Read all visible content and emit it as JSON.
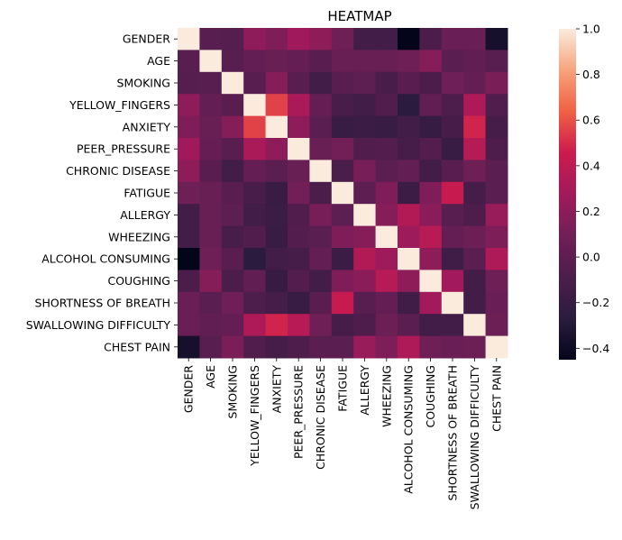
{
  "chart_data": {
    "type": "heatmap",
    "title": "HEATMAP",
    "xlabel": "",
    "ylabel": "",
    "categories": [
      "GENDER",
      "AGE",
      "SMOKING",
      "YELLOW_FINGERS",
      "ANXIETY",
      "PEER_PRESSURE",
      "CHRONIC DISEASE",
      "FATIGUE ",
      "ALLERGY ",
      "WHEEZING",
      "ALCOHOL CONSUMING",
      "COUGHING",
      "SHORTNESS OF BREATH",
      "SWALLOWING DIFFICULTY",
      "CHEST PAIN"
    ],
    "values": [
      [
        1.0,
        -0.03,
        -0.04,
        0.21,
        0.15,
        0.27,
        0.2,
        0.08,
        -0.15,
        -0.14,
        -0.45,
        -0.09,
        0.06,
        0.06,
        -0.36
      ],
      [
        -0.03,
        1.0,
        -0.03,
        0.03,
        0.05,
        0.04,
        -0.02,
        0.05,
        0.05,
        0.05,
        0.08,
        0.17,
        -0.01,
        0.02,
        -0.03
      ],
      [
        -0.04,
        -0.03,
        1.0,
        -0.02,
        0.17,
        -0.02,
        -0.14,
        -0.02,
        0.0,
        -0.11,
        -0.02,
        -0.09,
        0.09,
        0.04,
        0.13
      ],
      [
        0.21,
        0.03,
        -0.02,
        1.0,
        0.56,
        0.32,
        0.04,
        -0.11,
        -0.14,
        -0.06,
        -0.27,
        0.02,
        -0.08,
        0.33,
        -0.06
      ],
      [
        0.15,
        0.05,
        0.17,
        0.56,
        1.0,
        0.21,
        -0.01,
        -0.2,
        -0.18,
        -0.19,
        -0.15,
        -0.21,
        -0.12,
        0.48,
        -0.12
      ],
      [
        0.27,
        0.04,
        -0.02,
        0.32,
        0.21,
        1.0,
        0.05,
        0.1,
        -0.06,
        -0.05,
        -0.12,
        -0.05,
        -0.2,
        0.37,
        -0.07
      ],
      [
        0.2,
        -0.02,
        -0.14,
        0.04,
        -0.01,
        0.05,
        1.0,
        -0.1,
        0.12,
        -0.01,
        0.03,
        -0.15,
        -0.02,
        0.08,
        -0.01
      ],
      [
        0.08,
        0.05,
        -0.02,
        -0.11,
        -0.2,
        0.1,
        -0.1,
        1.0,
        0.0,
        0.15,
        -0.18,
        0.15,
        0.44,
        -0.12,
        -0.01
      ],
      [
        -0.15,
        0.05,
        0.0,
        -0.14,
        -0.18,
        -0.06,
        0.12,
        0.0,
        1.0,
        0.17,
        0.35,
        0.19,
        -0.03,
        -0.07,
        0.24
      ],
      [
        -0.14,
        0.05,
        -0.11,
        -0.06,
        -0.19,
        -0.05,
        -0.01,
        0.15,
        0.17,
        1.0,
        0.26,
        0.37,
        0.04,
        0.07,
        0.14
      ],
      [
        -0.45,
        0.08,
        -0.02,
        -0.27,
        -0.15,
        -0.12,
        0.03,
        -0.18,
        0.35,
        0.26,
        1.0,
        0.2,
        -0.16,
        -0.01,
        0.33
      ],
      [
        -0.09,
        0.17,
        -0.09,
        0.02,
        -0.21,
        -0.05,
        -0.15,
        0.15,
        0.19,
        0.37,
        0.2,
        1.0,
        0.28,
        -0.15,
        0.08
      ],
      [
        0.06,
        -0.01,
        0.09,
        -0.08,
        -0.12,
        -0.2,
        -0.02,
        0.44,
        -0.03,
        0.04,
        -0.16,
        0.28,
        1.0,
        -0.15,
        0.06
      ],
      [
        0.06,
        0.02,
        0.04,
        0.33,
        0.48,
        0.37,
        0.08,
        -0.12,
        -0.07,
        0.07,
        -0.01,
        -0.15,
        -0.15,
        1.0,
        0.07
      ],
      [
        -0.36,
        -0.03,
        0.13,
        -0.06,
        -0.12,
        -0.07,
        -0.01,
        -0.01,
        0.24,
        0.14,
        0.33,
        0.08,
        0.06,
        0.07,
        1.0
      ]
    ],
    "vmin": -0.45,
    "vmax": 1.0,
    "colorbar_ticks": [
      "1.0",
      "0.8",
      "0.6",
      "0.4",
      "0.2",
      "0.0",
      "−0.2",
      "−0.4"
    ],
    "colorbar_tick_values": [
      1.0,
      0.8,
      0.6,
      0.4,
      0.2,
      0.0,
      -0.2,
      -0.4
    ],
    "colormap": "rocket",
    "colormap_stops": [
      "#03051a",
      "#2b1c3f",
      "#4c1d4b",
      "#701f57",
      "#a11a5b",
      "#cb1b4f",
      "#f06043",
      "#f6a47c",
      "#faebdd"
    ]
  }
}
